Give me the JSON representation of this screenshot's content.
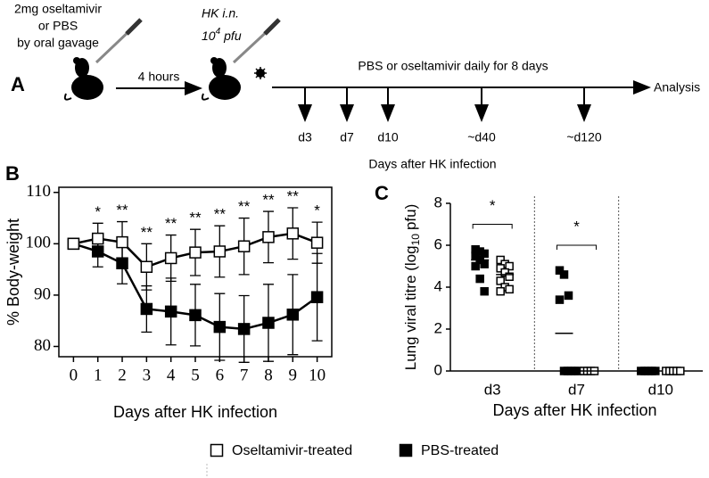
{
  "schematic": {
    "panel": "A",
    "treatment": [
      "2mg oseltamivir",
      "or PBS",
      "by oral gavage"
    ],
    "delay": "4 hours",
    "infection": "HK i.n.",
    "dose": [
      "10",
      "4",
      "pfu"
    ],
    "regimen": "PBS or oseltamivir daily for 8 days",
    "end": "Analysis",
    "timepoints": [
      "d3",
      "d7",
      "d10",
      "~d40",
      "~d120"
    ],
    "timeline_label": "Days after HK infection"
  },
  "chart_data": [
    {
      "type": "line",
      "panel": "B",
      "x": [
        0,
        1,
        2,
        3,
        4,
        5,
        6,
        7,
        8,
        9,
        10
      ],
      "xlim": [
        -0.6,
        10.6
      ],
      "xticks": [
        0,
        1,
        2,
        3,
        4,
        5,
        6,
        7,
        8,
        9,
        10
      ],
      "ylim": [
        78,
        111
      ],
      "yticks": [
        80,
        90,
        100,
        110
      ],
      "x_label": "Days after HK infection",
      "y_label": "% Body-weight",
      "series": [
        {
          "name": "Oseltamivir-treated",
          "marker": "open",
          "color": "#000000",
          "values": [
            100,
            101,
            100.3,
            95.5,
            97.2,
            98.3,
            98.5,
            99.5,
            101.3,
            102,
            100.2
          ],
          "errors": [
            0,
            3,
            4,
            4.5,
            4.5,
            4.5,
            5,
            5.5,
            5,
            5,
            4
          ]
        },
        {
          "name": "PBS-treated",
          "marker": "filled",
          "color": "#000000",
          "values": [
            100,
            98.5,
            96.2,
            87.3,
            86.8,
            86.1,
            83.8,
            83.4,
            84.6,
            86.2,
            89.6
          ],
          "errors": [
            0,
            3,
            4,
            4.5,
            6.5,
            6,
            6.5,
            6.5,
            7.5,
            7.8,
            8.5
          ]
        }
      ],
      "annotations": [
        {
          "x": 1,
          "label": "*"
        },
        {
          "x": 2,
          "label": "**"
        },
        {
          "x": 3,
          "label": "**"
        },
        {
          "x": 4,
          "label": "**"
        },
        {
          "x": 5,
          "label": "**"
        },
        {
          "x": 6,
          "label": "**"
        },
        {
          "x": 7,
          "label": "**"
        },
        {
          "x": 8,
          "label": "**"
        },
        {
          "x": 9,
          "label": "**"
        },
        {
          "x": 10,
          "label": "*"
        }
      ]
    },
    {
      "type": "strip",
      "panel": "C",
      "categories": [
        "d3",
        "d7",
        "d10"
      ],
      "ylim": [
        0,
        8
      ],
      "yticks": [
        0,
        2,
        4,
        6,
        8
      ],
      "x_label": "Days after HK infection",
      "y_label": [
        "Lung viral titre (log",
        "10",
        "pfu)"
      ],
      "series": [
        {
          "marker": "filled",
          "color": "#000000",
          "values": [
            [
              5.8,
              5.7,
              5.6,
              5.5,
              5.3,
              5.1,
              5.0,
              4.4,
              3.8
            ],
            [
              4.8,
              4.6,
              3.6,
              3.4,
              0,
              0,
              0,
              0,
              0
            ],
            [
              0,
              0,
              0,
              0,
              0
            ]
          ],
          "means": [
            5.3,
            1.8,
            null
          ]
        },
        {
          "marker": "open",
          "color": "#000000",
          "values": [
            [
              5.3,
              5.1,
              5.0,
              4.9,
              4.7,
              4.5,
              4.3,
              4.0,
              3.9,
              3.8
            ],
            [
              0,
              0,
              0,
              0
            ],
            [
              0,
              0,
              0,
              0,
              0
            ]
          ],
          "means": [
            4.6,
            0,
            null
          ]
        }
      ],
      "annotations": [
        {
          "category": 0,
          "label": "*"
        },
        {
          "category": 1,
          "label": "*"
        }
      ]
    }
  ]
}
